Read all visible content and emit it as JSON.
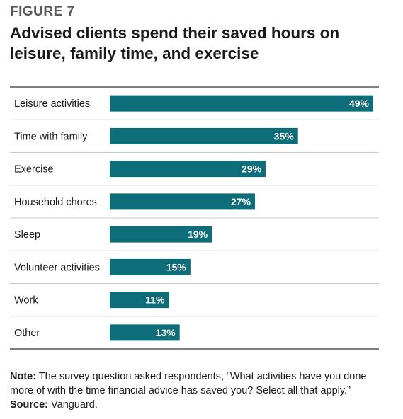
{
  "figure_label": "FIGURE 7",
  "title_lines": [
    "Advised clients spend their saved hours on",
    "leisure, family time, and exercise"
  ],
  "colors": {
    "bar": "#0d6e7a",
    "rule": "#333333",
    "divider": "#c8c8c8",
    "bar_label": "#ffffff"
  },
  "chart_data": {
    "type": "bar",
    "orientation": "horizontal",
    "categories": [
      "Leisure activities",
      "Time with family",
      "Exercise",
      "Household chores",
      "Sleep",
      "Volunteer activities",
      "Work",
      "Other"
    ],
    "values": [
      49,
      35,
      29,
      27,
      19,
      15,
      11,
      13
    ],
    "value_labels": [
      "49%",
      "35%",
      "29%",
      "27%",
      "19%",
      "15%",
      "11%",
      "13%"
    ],
    "unit": "%",
    "grid": false,
    "legend": "none"
  },
  "note": {
    "label": "Note:",
    "text_line1": " The survey question asked respondents, “What activities have you done",
    "text_line2": "more of with the time financial advice has saved you? Select all that apply.”"
  },
  "source": {
    "label": "Source:",
    "text": " Vanguard."
  }
}
